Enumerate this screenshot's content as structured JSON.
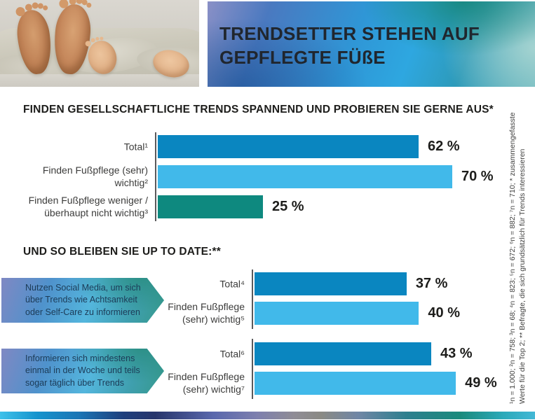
{
  "header": {
    "title_lines": [
      "TRENDSETTER STEHEN AUF",
      "GEPFLEGTE FÜßE"
    ]
  },
  "footnote": {
    "line1": "¹n = 1.000; ²n = 758; ³n = 68; ⁴n = 823; ⁵n = 672; ⁶n = 882; ⁷n = 710; * zusammengefasste",
    "line2": "Werte für die Top 2; ** Befragte, die sich grundsätzlich für Trends interessieren"
  },
  "colors": {
    "bar_dark_blue": "#0a86c0",
    "bar_light_blue": "#41b9ea",
    "bar_teal": "#0e897f",
    "value_text": "#1d1d1b",
    "label_text": "#3c3c3b"
  },
  "chart_data": [
    {
      "type": "bar",
      "orientation": "horizontal",
      "title": "FINDEN GESELLSCHAFTLICHE TRENDS SPANNEND UND PROBIEREN SIE GERNE AUS*",
      "categories": [
        "Total¹",
        "Finden Fußpflege (sehr) wichtig²",
        "Finden Fußpflege weniger / überhaupt nicht wichtig³"
      ],
      "values": [
        62,
        70,
        25
      ],
      "value_labels": [
        "62 %",
        "70 %",
        "25 %"
      ],
      "bar_colors": [
        "#0a86c0",
        "#41b9ea",
        "#0e897f"
      ],
      "unit": "%",
      "xlim": [
        0,
        100
      ],
      "grid": false,
      "legend": "none",
      "value_label_position": "outside-end"
    },
    {
      "type": "bar",
      "orientation": "horizontal",
      "title": "UND SO BLEIBEN SIE UP TO DATE:**",
      "unit": "%",
      "xlim": [
        0,
        100
      ],
      "grid": false,
      "legend": "none",
      "value_label_position": "outside-end",
      "groups": [
        {
          "annotation": "Nutzen Social Media, um sich über Trends wie Achtsamkeit oder Self-Care zu informieren",
          "categories": [
            "Total⁴",
            "Finden Fußpflege (sehr) wichtig⁵"
          ],
          "values": [
            37,
            40
          ],
          "value_labels": [
            "37 %",
            "40 %"
          ],
          "bar_colors": [
            "#0a86c0",
            "#41b9ea"
          ]
        },
        {
          "annotation": "Informieren sich mindestens einmal in der Woche und teils sogar täglich über Trends",
          "categories": [
            "Total⁶",
            "Finden Fußpflege (sehr) wichtig⁷"
          ],
          "values": [
            43,
            49
          ],
          "value_labels": [
            "43 %",
            "49 %"
          ],
          "bar_colors": [
            "#0a86c0",
            "#41b9ea"
          ]
        }
      ]
    }
  ]
}
